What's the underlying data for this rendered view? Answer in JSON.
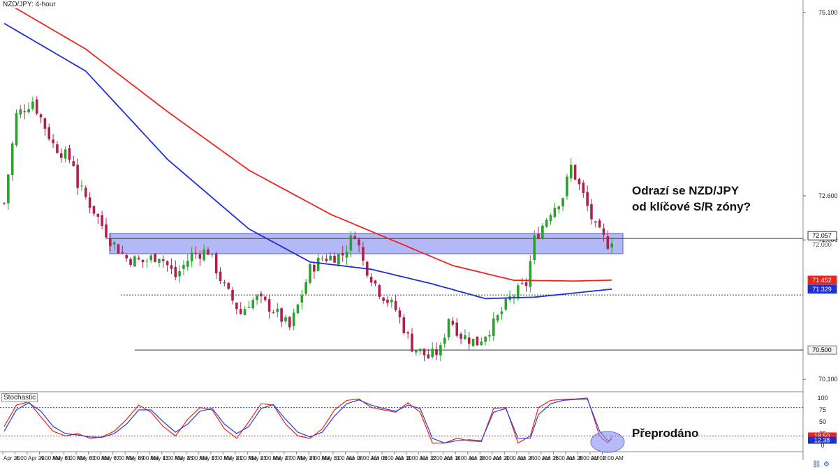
{
  "symbol_label": "NZD/JPY: 4-hour",
  "annotation_main_line1": "Odrazí se NZD/JPY",
  "annotation_main_line2": "od klíčové S/R zóny?",
  "annotation_oversold": "Přeprodáno",
  "stochastic_label": "Stochastic",
  "colors": {
    "up_candle": "#2ca02c",
    "down_candle": "#b0204a",
    "ma_red": "#e8261c",
    "ma_blue": "#1f2fd0",
    "zone_fill": "#9aa0f5",
    "zone_border": "#5a5fe0",
    "stoch_k": "#e8261c",
    "stoch_d": "#2a3fd6",
    "current_price_tag": "#000000",
    "red_tag": "#e8261c",
    "blue_tag": "#1f2fd0"
  },
  "price_axis": {
    "ticks": [
      "75.100",
      "72.600",
      "72.057",
      "72.000",
      "71.452",
      "71.329",
      "70.500",
      "70.100"
    ],
    "tick_values": [
      75.1,
      72.6,
      72.057,
      72.0,
      71.452,
      71.329,
      70.5,
      70.1
    ],
    "tagged": [
      {
        "label": "72.057",
        "value": 72.057,
        "style": "current"
      },
      {
        "label": "71.452",
        "value": 71.452,
        "style": "red"
      },
      {
        "label": "71.329",
        "value": 71.329,
        "style": "blue"
      },
      {
        "label": "70.500",
        "value": 70.5,
        "style": "gray"
      }
    ]
  },
  "stoch_axis": {
    "ticks": [
      "100",
      "75",
      "50",
      "25",
      "0"
    ],
    "tick_values": [
      100,
      75,
      50,
      25,
      0
    ],
    "tagged": [
      "18.50",
      "12.38"
    ]
  },
  "time_axis": {
    "labels": [
      "Apr 25",
      "4:00",
      "Apr 29",
      "4:00 AM",
      "May 01",
      "8:00 AM",
      "May 03",
      "8:00 AM",
      "May 07",
      "8:00 AM",
      "May 09",
      "8:00 AM",
      "May 13",
      "4:00 AM",
      "May 15",
      "8:00 AM",
      "May 17",
      "8:00 AM",
      "May 21",
      "8:00 AM",
      "May 23",
      "8:00 AM",
      "May 27",
      "4:00 AM",
      "May 29",
      "8:00 AM",
      "May 31",
      "8:00 AM",
      "Jun 04",
      "8:00 AM",
      "Jun 06",
      "8:00 AM",
      "Jun 10",
      "8:00 AM",
      "Jun 12",
      "8:00 AM",
      "Jun 14",
      "8:00 AM",
      "Jun 18",
      "8:00 AM",
      "Jun 20",
      "8:00 AM",
      "Jun 24",
      "4:00 AM",
      "Jun 26",
      "8:00 AM",
      "Jun 28",
      "8:00 AM",
      "Jul 02",
      "8:00 AM"
    ]
  },
  "chart_data": {
    "type": "candlestick",
    "title": "NZD/JPY: 4-hour",
    "price_range": [
      69.95,
      75.25
    ],
    "sr_zone": [
      71.85,
      72.05
    ],
    "horizontal_levels": [
      {
        "value": 72.02,
        "style": "solid"
      },
      {
        "value": 71.25,
        "style": "dotted"
      },
      {
        "value": 70.5,
        "style": "solid"
      }
    ],
    "close_path_points": [
      [
        0,
        72.5
      ],
      [
        3,
        73.7
      ],
      [
        7,
        73.9
      ],
      [
        12,
        73.3
      ],
      [
        17,
        73.05
      ],
      [
        18,
        72.75
      ],
      [
        22,
        72.4
      ],
      [
        26,
        72.0
      ],
      [
        30,
        71.75
      ],
      [
        34,
        71.7
      ],
      [
        38,
        71.8
      ],
      [
        42,
        71.5
      ],
      [
        46,
        71.8
      ],
      [
        50,
        71.85
      ],
      [
        54,
        71.35
      ],
      [
        58,
        71.0
      ],
      [
        60,
        71.15
      ],
      [
        62,
        71.2
      ],
      [
        66,
        71.05
      ],
      [
        70,
        70.8
      ],
      [
        72,
        71.1
      ],
      [
        75,
        71.6
      ],
      [
        78,
        71.75
      ],
      [
        83,
        71.8
      ],
      [
        86,
        72.1
      ],
      [
        88,
        71.7
      ],
      [
        92,
        71.3
      ],
      [
        96,
        71.05
      ],
      [
        100,
        70.55
      ],
      [
        104,
        70.4
      ],
      [
        107,
        70.5
      ],
      [
        109,
        70.95
      ],
      [
        112,
        70.7
      ],
      [
        116,
        70.6
      ],
      [
        120,
        70.85
      ],
      [
        124,
        71.2
      ],
      [
        128,
        71.4
      ],
      [
        130,
        72.0
      ],
      [
        134,
        72.4
      ],
      [
        137,
        72.6
      ],
      [
        139,
        73.0
      ],
      [
        142,
        72.6
      ],
      [
        145,
        72.15
      ],
      [
        148,
        71.95
      ],
      [
        149,
        72.02
      ]
    ],
    "moving_averages": [
      {
        "name": "",
        "color": "red",
        "points": [
          [
            0,
            75.25
          ],
          [
            20,
            74.6
          ],
          [
            40,
            73.75
          ],
          [
            60,
            72.95
          ],
          [
            80,
            72.35
          ],
          [
            95,
            72.0
          ],
          [
            110,
            71.65
          ],
          [
            125,
            71.45
          ],
          [
            140,
            71.44
          ],
          [
            149,
            71.452
          ]
        ]
      },
      {
        "name": "",
        "color": "blue",
        "points": [
          [
            0,
            74.95
          ],
          [
            20,
            74.3
          ],
          [
            40,
            73.1
          ],
          [
            60,
            72.15
          ],
          [
            75,
            71.7
          ],
          [
            90,
            71.6
          ],
          [
            105,
            71.4
          ],
          [
            118,
            71.2
          ],
          [
            130,
            71.22
          ],
          [
            149,
            71.329
          ]
        ]
      }
    ],
    "stochastic": {
      "k_points": [
        [
          0,
          40
        ],
        [
          3,
          85
        ],
        [
          6,
          92
        ],
        [
          9,
          60
        ],
        [
          12,
          30
        ],
        [
          15,
          20
        ],
        [
          18,
          25
        ],
        [
          21,
          15
        ],
        [
          24,
          18
        ],
        [
          27,
          30
        ],
        [
          30,
          55
        ],
        [
          33,
          85
        ],
        [
          36,
          70
        ],
        [
          39,
          40
        ],
        [
          42,
          20
        ],
        [
          45,
          55
        ],
        [
          48,
          80
        ],
        [
          51,
          75
        ],
        [
          54,
          35
        ],
        [
          57,
          15
        ],
        [
          60,
          50
        ],
        [
          63,
          88
        ],
        [
          66,
          85
        ],
        [
          69,
          45
        ],
        [
          72,
          20
        ],
        [
          75,
          15
        ],
        [
          78,
          35
        ],
        [
          81,
          75
        ],
        [
          84,
          95
        ],
        [
          87,
          98
        ],
        [
          90,
          80
        ],
        [
          93,
          75
        ],
        [
          96,
          70
        ],
        [
          99,
          90
        ],
        [
          102,
          70
        ],
        [
          105,
          5
        ],
        [
          108,
          5
        ],
        [
          111,
          15
        ],
        [
          114,
          10
        ],
        [
          117,
          8
        ],
        [
          120,
          78
        ],
        [
          123,
          80
        ],
        [
          126,
          5
        ],
        [
          129,
          20
        ],
        [
          131,
          80
        ],
        [
          134,
          95
        ],
        [
          137,
          97
        ],
        [
          140,
          98
        ],
        [
          143,
          100
        ],
        [
          146,
          20
        ],
        [
          148,
          5
        ],
        [
          149,
          18.5
        ]
      ],
      "d_points": [
        [
          0,
          30
        ],
        [
          3,
          75
        ],
        [
          6,
          90
        ],
        [
          9,
          72
        ],
        [
          12,
          40
        ],
        [
          15,
          25
        ],
        [
          18,
          22
        ],
        [
          21,
          18
        ],
        [
          24,
          17
        ],
        [
          27,
          25
        ],
        [
          30,
          45
        ],
        [
          33,
          75
        ],
        [
          36,
          75
        ],
        [
          39,
          50
        ],
        [
          42,
          28
        ],
        [
          45,
          45
        ],
        [
          48,
          72
        ],
        [
          51,
          78
        ],
        [
          54,
          45
        ],
        [
          57,
          25
        ],
        [
          60,
          40
        ],
        [
          63,
          78
        ],
        [
          66,
          86
        ],
        [
          69,
          55
        ],
        [
          72,
          28
        ],
        [
          75,
          18
        ],
        [
          78,
          28
        ],
        [
          81,
          62
        ],
        [
          84,
          88
        ],
        [
          87,
          96
        ],
        [
          90,
          85
        ],
        [
          93,
          78
        ],
        [
          96,
          72
        ],
        [
          99,
          85
        ],
        [
          102,
          78
        ],
        [
          105,
          15
        ],
        [
          108,
          5
        ],
        [
          111,
          10
        ],
        [
          114,
          12
        ],
        [
          117,
          10
        ],
        [
          120,
          70
        ],
        [
          123,
          78
        ],
        [
          126,
          15
        ],
        [
          129,
          15
        ],
        [
          131,
          65
        ],
        [
          134,
          88
        ],
        [
          137,
          95
        ],
        [
          140,
          97
        ],
        [
          143,
          98
        ],
        [
          146,
          30
        ],
        [
          148,
          10
        ],
        [
          149,
          12.38
        ]
      ],
      "levels": [
        80,
        20
      ]
    }
  }
}
